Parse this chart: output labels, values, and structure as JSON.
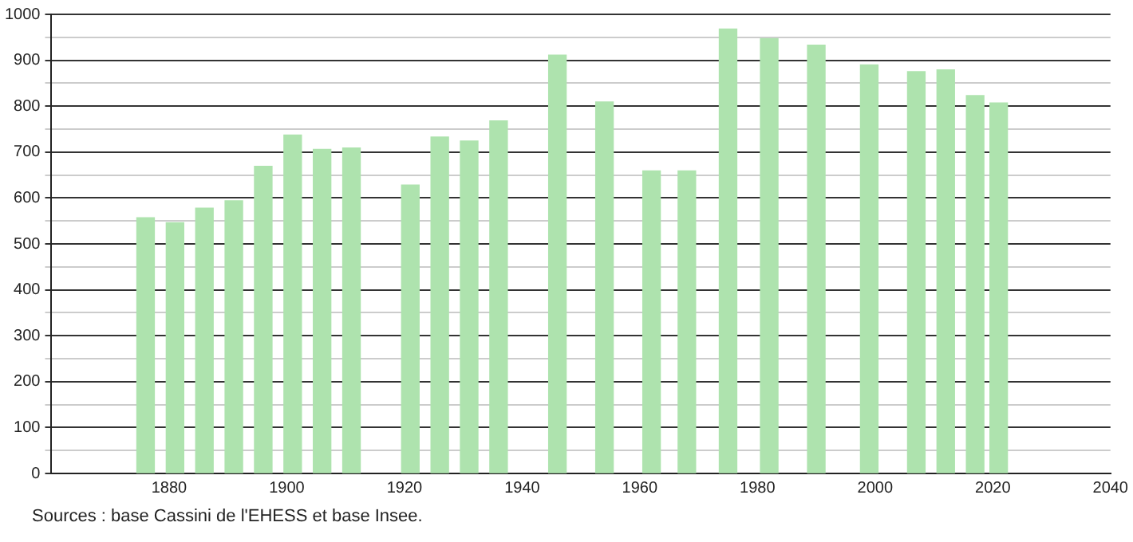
{
  "chart_data": {
    "type": "bar",
    "x": [
      1876,
      1881,
      1886,
      1891,
      1896,
      1901,
      1906,
      1911,
      1921,
      1926,
      1931,
      1936,
      1946,
      1954,
      1962,
      1968,
      1975,
      1982,
      1990,
      1999,
      2007,
      2012,
      2017,
      2021
    ],
    "values": [
      557,
      546,
      578,
      594,
      669,
      737,
      706,
      709,
      628,
      733,
      724,
      768,
      911,
      809,
      659,
      659,
      968,
      947,
      933,
      890,
      875,
      879,
      823,
      807
    ],
    "color": "#aee3ae",
    "xlim": [
      1860,
      2040
    ],
    "xticks": [
      1880,
      1900,
      1920,
      1940,
      1960,
      1980,
      2000,
      2020,
      2040
    ],
    "ylim": [
      0,
      1000
    ],
    "yticks": [
      0,
      {
        "value": 50,
        "label": null
      },
      100,
      {
        "value": 150,
        "label": null
      },
      200,
      {
        "value": 250,
        "label": null
      },
      300,
      {
        "value": 350,
        "label": null
      },
      400,
      {
        "value": 450,
        "label": null
      },
      500,
      {
        "value": 550,
        "label": null
      },
      600,
      {
        "value": 650,
        "label": null
      },
      700,
      {
        "value": 750,
        "label": null
      },
      800,
      {
        "value": 850,
        "label": null
      },
      900,
      {
        "value": 950,
        "label": null
      },
      1000
    ],
    "grid": "y",
    "annotations": [
      "Sources : base Cassini de l'EHESS et base Insee."
    ]
  }
}
